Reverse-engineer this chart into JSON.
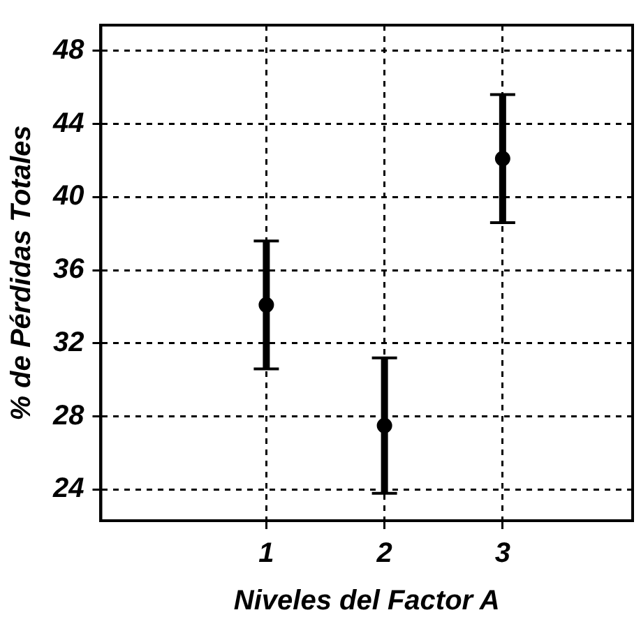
{
  "chart_data": {
    "type": "scatter",
    "xlabel": "Niveles del Factor A",
    "ylabel": "% de Pérdidas Totales",
    "series": [
      {
        "color": "#000000",
        "x": [
          1,
          2,
          3
        ],
        "values": [
          34.1,
          27.5,
          42.1
        ],
        "errors": [
          3.5,
          3.7,
          3.5
        ]
      }
    ],
    "xlim": [
      -0.4,
      4.1
    ],
    "xticks": [
      1,
      2,
      3
    ],
    "ylim": [
      22.3,
      49.4
    ],
    "yticks": [
      24,
      28,
      32,
      36,
      40,
      44,
      48
    ],
    "grid": true,
    "legend": false,
    "marker": "circle"
  }
}
